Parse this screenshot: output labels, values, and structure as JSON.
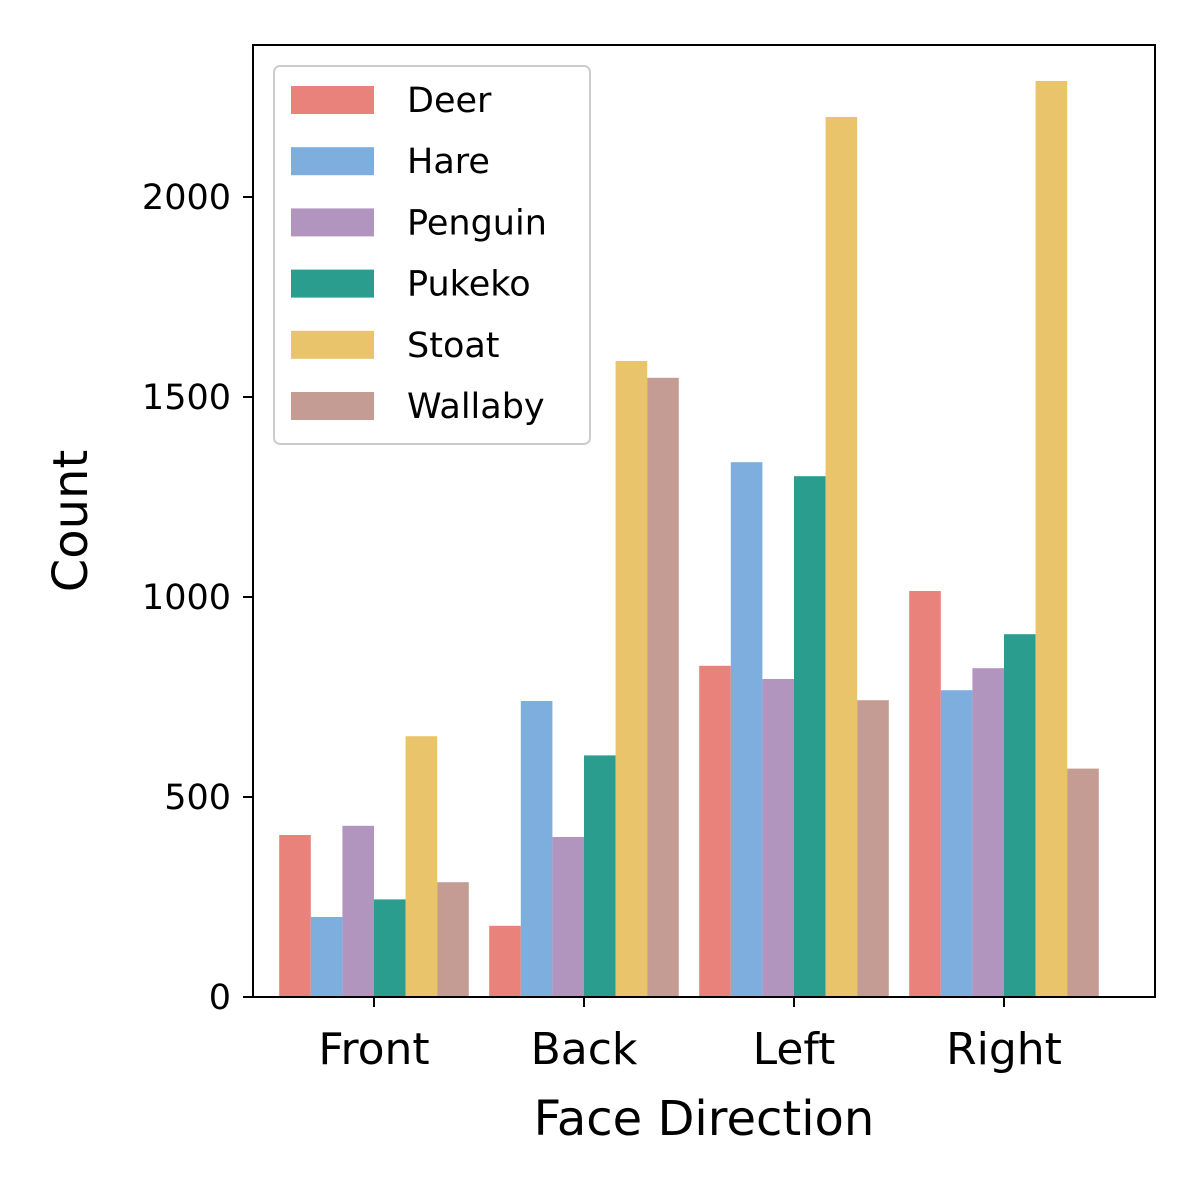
{
  "chart_data": {
    "type": "bar",
    "title": "",
    "xlabel": "Face Direction",
    "ylabel": "Count",
    "categories": [
      "Front",
      "Back",
      "Left",
      "Right"
    ],
    "series": [
      {
        "name": "Deer",
        "color": "#E8827A",
        "values": [
          405,
          178,
          828,
          1015
        ]
      },
      {
        "name": "Hare",
        "color": "#7DAEDD",
        "values": [
          200,
          740,
          1337,
          767
        ]
      },
      {
        "name": "Penguin",
        "color": "#B195BF",
        "values": [
          428,
          400,
          795,
          822
        ]
      },
      {
        "name": "Pukeko",
        "color": "#2A9D8F",
        "values": [
          244,
          604,
          1302,
          907
        ]
      },
      {
        "name": "Stoat",
        "color": "#E9C46A",
        "values": [
          652,
          1590,
          2200,
          2290
        ]
      },
      {
        "name": "Wallaby",
        "color": "#C49C94",
        "values": [
          287,
          1548,
          742,
          571
        ]
      }
    ],
    "ylim": [
      0,
      2380
    ],
    "yticks": [
      0,
      500,
      1000,
      1500,
      2000
    ],
    "grid": false,
    "legend_position": "top-left"
  }
}
